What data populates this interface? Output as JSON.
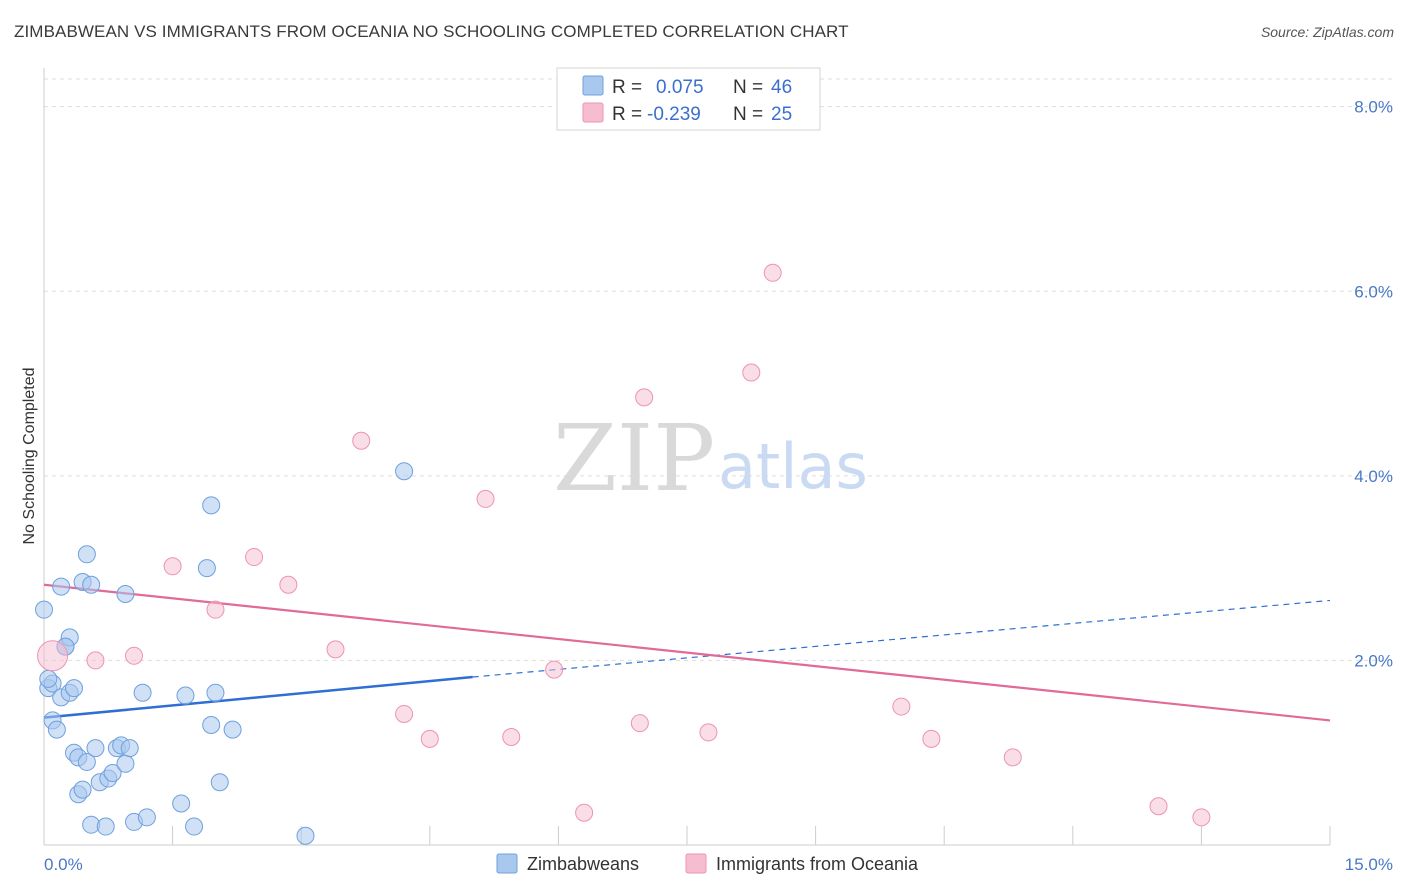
{
  "title": "ZIMBABWEAN VS IMMIGRANTS FROM OCEANIA NO SCHOOLING COMPLETED CORRELATION CHART",
  "source": "Source: ZipAtlas.com",
  "watermark": {
    "zip": "ZIP",
    "atlas": "atlas"
  },
  "colors": {
    "blue_fill": "#a9c8ee",
    "blue_stroke": "#6fa0de",
    "blue_line": "#2f6fd1",
    "pink_fill": "#f6bdd0",
    "pink_stroke": "#ec93b2",
    "pink_line": "#e06a98",
    "grid": "#dddddd",
    "axis_text": "#4a78c7"
  },
  "legend": {
    "r_label": "R =",
    "n_label": "N =",
    "blue": {
      "r": "0.075",
      "n": "46"
    },
    "pink": {
      "r": "-0.239",
      "n": "25"
    }
  },
  "chart_data": {
    "type": "scatter",
    "title": "ZIMBABWEAN VS IMMIGRANTS FROM OCEANIA NO SCHOOLING COMPLETED CORRELATION CHART",
    "ylabel": "No Schooling Completed",
    "xlabel": "",
    "xlim": [
      0,
      15
    ],
    "ylim": [
      0,
      8.3
    ],
    "x_tick_labels": [
      {
        "value": 0,
        "label": "0.0%"
      },
      {
        "value": 15,
        "label": "15.0%"
      }
    ],
    "y_tick_labels": [
      {
        "value": 2,
        "label": "2.0%"
      },
      {
        "value": 4,
        "label": "4.0%"
      },
      {
        "value": 6,
        "label": "6.0%"
      },
      {
        "value": 8,
        "label": "8.0%"
      }
    ],
    "series": [
      {
        "name": "Zimbabweans",
        "color": "#a9c8ee",
        "points": [
          [
            0.0,
            2.55
          ],
          [
            0.05,
            1.7
          ],
          [
            0.1,
            1.75
          ],
          [
            0.1,
            1.35
          ],
          [
            0.15,
            1.25
          ],
          [
            0.2,
            1.6
          ],
          [
            0.2,
            2.8
          ],
          [
            0.25,
            2.15
          ],
          [
            0.3,
            2.25
          ],
          [
            0.3,
            1.65
          ],
          [
            0.35,
            1.7
          ],
          [
            0.35,
            1.0
          ],
          [
            0.4,
            0.95
          ],
          [
            0.4,
            0.55
          ],
          [
            0.45,
            2.85
          ],
          [
            0.45,
            0.6
          ],
          [
            0.5,
            3.15
          ],
          [
            0.5,
            0.9
          ],
          [
            0.55,
            2.82
          ],
          [
            0.55,
            0.22
          ],
          [
            0.6,
            1.05
          ],
          [
            0.65,
            0.68
          ],
          [
            0.72,
            0.2
          ],
          [
            0.75,
            0.72
          ],
          [
            0.8,
            0.78
          ],
          [
            0.85,
            1.05
          ],
          [
            0.9,
            1.08
          ],
          [
            0.95,
            2.72
          ],
          [
            0.95,
            0.88
          ],
          [
            1.0,
            1.05
          ],
          [
            1.05,
            0.25
          ],
          [
            1.15,
            1.65
          ],
          [
            1.2,
            0.3
          ],
          [
            1.6,
            0.45
          ],
          [
            1.65,
            1.62
          ],
          [
            1.75,
            0.2
          ],
          [
            1.9,
            3.0
          ],
          [
            1.95,
            3.68
          ],
          [
            1.95,
            1.3
          ],
          [
            2.0,
            1.65
          ],
          [
            2.05,
            0.68
          ],
          [
            2.2,
            1.25
          ],
          [
            3.05,
            0.1
          ],
          [
            4.2,
            4.05
          ],
          [
            0.25,
            2.15
          ],
          [
            0.05,
            1.8
          ]
        ],
        "trend": {
          "x": [
            0,
            5
          ],
          "y": [
            1.38,
            1.82
          ],
          "dashed_to": {
            "x": 15,
            "y": 2.65
          }
        }
      },
      {
        "name": "Immigrants from Oceania",
        "color": "#f6bdd0",
        "points": [
          [
            0.1,
            2.05
          ],
          [
            0.6,
            2.0
          ],
          [
            1.05,
            2.05
          ],
          [
            1.5,
            3.02
          ],
          [
            2.0,
            2.55
          ],
          [
            2.45,
            3.12
          ],
          [
            2.85,
            2.82
          ],
          [
            3.4,
            2.12
          ],
          [
            3.7,
            4.38
          ],
          [
            4.2,
            1.42
          ],
          [
            4.5,
            1.15
          ],
          [
            5.15,
            3.75
          ],
          [
            5.45,
            1.17
          ],
          [
            5.95,
            1.9
          ],
          [
            6.3,
            0.35
          ],
          [
            6.95,
            1.32
          ],
          [
            7.0,
            4.85
          ],
          [
            7.75,
            1.22
          ],
          [
            8.25,
            5.12
          ],
          [
            8.5,
            6.2
          ],
          [
            10.0,
            1.5
          ],
          [
            10.35,
            1.15
          ],
          [
            11.3,
            0.95
          ],
          [
            13.0,
            0.42
          ],
          [
            13.5,
            0.3
          ]
        ],
        "trend": {
          "x": [
            0,
            15
          ],
          "y": [
            2.82,
            1.35
          ]
        }
      }
    ],
    "legend": [
      {
        "name": "Zimbabweans",
        "r": 0.075,
        "n": 46
      },
      {
        "name": "Immigrants from Oceania",
        "r": -0.239,
        "n": 25
      }
    ]
  }
}
